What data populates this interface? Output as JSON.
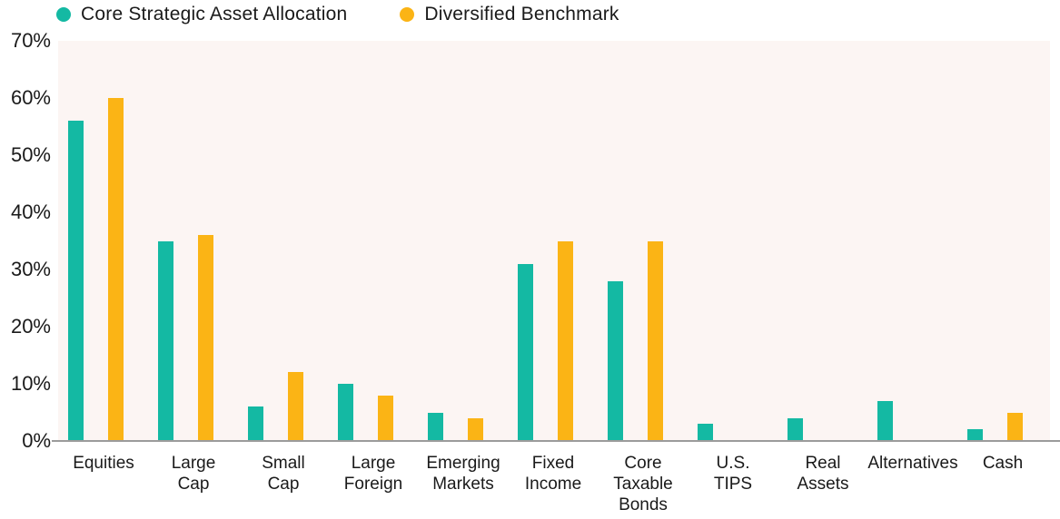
{
  "colors": {
    "series_core": "#14B9A3",
    "series_benchmark": "#FBB415",
    "plot_background": "#FCF5F3",
    "axis_line": "#9B9B9B",
    "text": "#1A1A1A"
  },
  "legend": {
    "items": [
      {
        "label": "Core Strategic Asset Allocation",
        "color": "#14B9A3"
      },
      {
        "label": "Diversified Benchmark",
        "color": "#FBB415"
      }
    ]
  },
  "chart_data": {
    "type": "bar",
    "title": "",
    "xlabel": "",
    "ylabel": "",
    "ylim": [
      0,
      70
    ],
    "yticks": [
      0,
      10,
      20,
      30,
      40,
      50,
      60,
      70
    ],
    "ytick_suffix": "%",
    "grid": false,
    "legend_position": "top",
    "categories": [
      "Equities",
      "Large Cap",
      "Small Cap",
      "Large Foreign",
      "Emerging Markets",
      "Fixed Income",
      "Core Taxable Bonds",
      "U.S. TIPS",
      "Real Assets",
      "Alternatives",
      "Cash"
    ],
    "category_display": [
      "Equities",
      "Large\nCap",
      "Small\nCap",
      "Large\nForeign",
      "Emerging\nMarkets",
      "Fixed\nIncome",
      "Core\nTaxable\nBonds",
      "U.S.\nTIPS",
      "Real\nAssets",
      "Alternatives",
      "Cash"
    ],
    "series": [
      {
        "name": "Core Strategic Asset Allocation",
        "color": "#14B9A3",
        "values": [
          56,
          35,
          6,
          10,
          5,
          31,
          28,
          3,
          4,
          7,
          2
        ]
      },
      {
        "name": "Diversified Benchmark",
        "color": "#FBB415",
        "values": [
          60,
          36,
          12,
          8,
          4,
          35,
          35,
          0,
          0,
          0,
          5
        ]
      }
    ]
  }
}
